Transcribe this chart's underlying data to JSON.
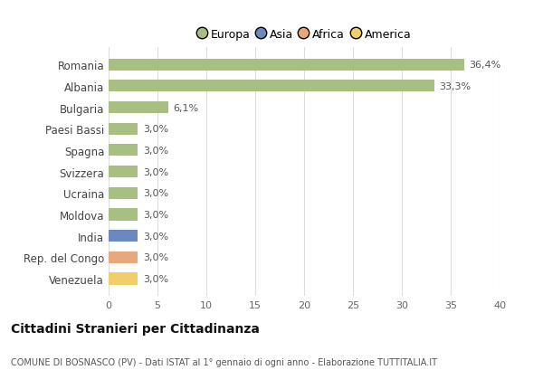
{
  "countries": [
    "Romania",
    "Albania",
    "Bulgaria",
    "Paesi Bassi",
    "Spagna",
    "Svizzera",
    "Ucraina",
    "Moldova",
    "India",
    "Rep. del Congo",
    "Venezuela"
  ],
  "values": [
    36.4,
    33.3,
    6.1,
    3.0,
    3.0,
    3.0,
    3.0,
    3.0,
    3.0,
    3.0,
    3.0
  ],
  "labels": [
    "36,4%",
    "33,3%",
    "6,1%",
    "3,0%",
    "3,0%",
    "3,0%",
    "3,0%",
    "3,0%",
    "3,0%",
    "3,0%",
    "3,0%"
  ],
  "colors": [
    "#a8bf82",
    "#a8bf82",
    "#a8bf82",
    "#a8bf82",
    "#a8bf82",
    "#a8bf82",
    "#a8bf82",
    "#a8bf82",
    "#6b88c0",
    "#e8a87c",
    "#f0ce6a"
  ],
  "legend_labels": [
    "Europa",
    "Asia",
    "Africa",
    "America"
  ],
  "legend_colors": [
    "#a8bf82",
    "#6b88c0",
    "#e8a87c",
    "#f0ce6a"
  ],
  "title": "Cittadini Stranieri per Cittadinanza",
  "subtitle": "COMUNE DI BOSNASCO (PV) - Dati ISTAT al 1° gennaio di ogni anno - Elaborazione TUTTITALIA.IT",
  "xlim": [
    0,
    40
  ],
  "xticks": [
    0,
    5,
    10,
    15,
    20,
    25,
    30,
    35,
    40
  ],
  "bg_color": "#ffffff",
  "grid_color": "#dddddd",
  "bar_height": 0.55
}
